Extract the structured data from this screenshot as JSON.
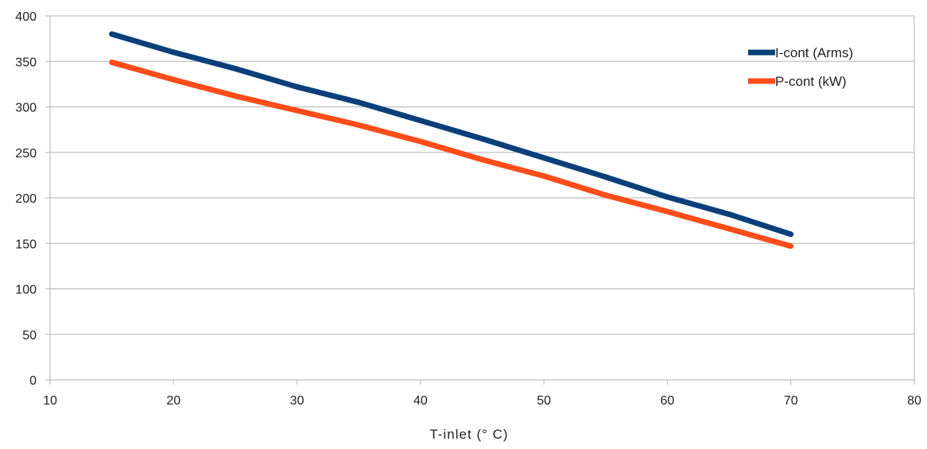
{
  "chart_data": {
    "type": "line",
    "title": "",
    "xlabel": "T-inlet (° C)",
    "ylabel": "",
    "xlim": [
      10,
      80
    ],
    "ylim": [
      0,
      400
    ],
    "x_ticks": [
      10,
      20,
      30,
      40,
      50,
      60,
      70,
      80
    ],
    "y_ticks": [
      0,
      50,
      100,
      150,
      200,
      250,
      300,
      350,
      400
    ],
    "grid": "horizontal",
    "legend_position": "top-right",
    "series": [
      {
        "name": "I-cont (Arms)",
        "color": "#0b3f7a",
        "x": [
          15,
          20,
          25,
          30,
          35,
          40,
          45,
          50,
          55,
          60,
          65,
          70
        ],
        "y": [
          380,
          360,
          342,
          322,
          305,
          285,
          265,
          244,
          223,
          201,
          182,
          160
        ]
      },
      {
        "name": "P-cont (kW)",
        "color": "#ff4d1a",
        "x": [
          15,
          20,
          25,
          30,
          35,
          40,
          45,
          50,
          55,
          60,
          65,
          70
        ],
        "y": [
          349,
          330,
          312,
          296,
          280,
          262,
          242,
          224,
          203,
          185,
          166,
          147
        ]
      }
    ]
  }
}
